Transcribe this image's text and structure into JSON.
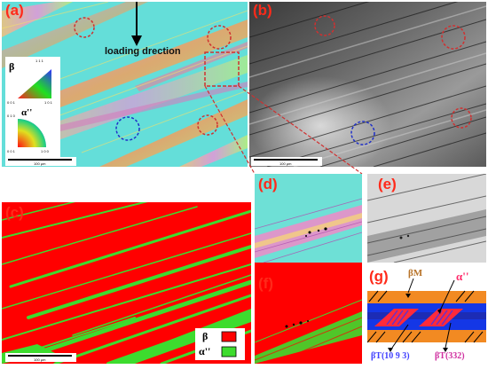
{
  "panels": {
    "a": {
      "label": "(a)",
      "loading_text": "loading drection",
      "scale_text": "100 μm"
    },
    "b": {
      "label": "(b)",
      "scale_text": "100 μm"
    },
    "c": {
      "label": "(c)",
      "scale_text": "100 μm"
    },
    "d": {
      "label": "(d)"
    },
    "e": {
      "label": "(e)"
    },
    "f": {
      "label": "(f)"
    },
    "g": {
      "label": "(g)"
    }
  },
  "ipf_legend": {
    "beta_symbol": "β",
    "alpha_symbol": "α''",
    "beta_tri_top": "1 1 1",
    "beta_tri_left": "0 0 1",
    "beta_tri_right": "1 0 1",
    "alpha_q_top": "0 1 0",
    "alpha_q_left": "0 0 1",
    "alpha_q_right": "1 0 0"
  },
  "phase_legend": {
    "beta": "β",
    "alpha": "α''"
  },
  "schematic": {
    "beta_m": "βM",
    "alpha": "α''",
    "beta_t1": "βT(10 9 3)",
    "beta_t2": "βT(332)"
  },
  "colors": {
    "beta_phase": "#ff0000",
    "alpha_phase": "#3ddc2e",
    "label_red": "#ff2a1a",
    "schematic_orange": "#f28a22",
    "schematic_blue": "#1437e6"
  }
}
